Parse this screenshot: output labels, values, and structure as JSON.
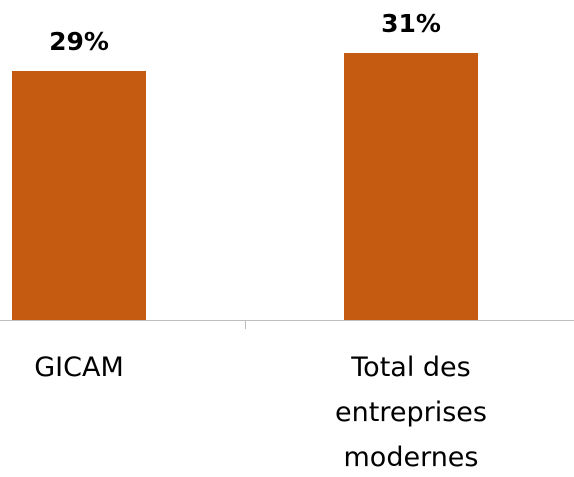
{
  "chart_data": {
    "type": "bar",
    "categories": [
      "GICAM",
      "Total des entreprises modernes"
    ],
    "values": [
      29,
      31
    ],
    "value_labels": [
      "29%",
      "31%"
    ],
    "color": "#c55a11"
  }
}
